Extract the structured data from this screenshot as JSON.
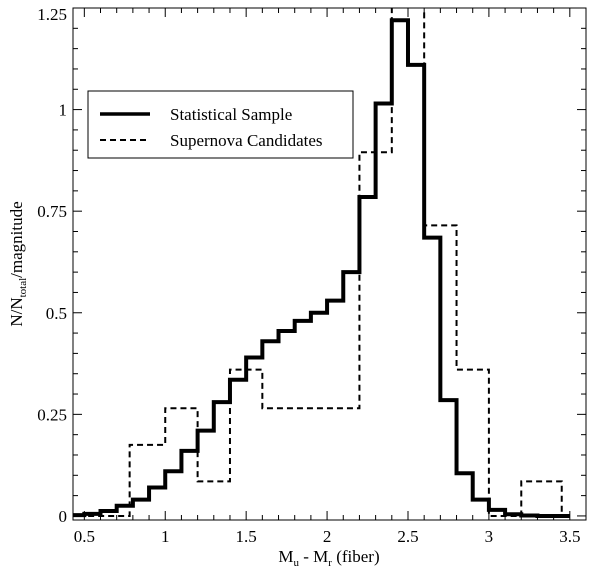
{
  "chart_data": {
    "type": "step-histogram",
    "xlabel": {
      "main": "M",
      "sub1": "u",
      "mid": " - M",
      "sub2": "r",
      "tail": " (fiber)"
    },
    "ylabel": {
      "main": "N/N",
      "sub": "total",
      "tail": "/magnitude"
    },
    "xlim": [
      0.43,
      3.6
    ],
    "ylim": [
      -0.01,
      1.25
    ],
    "xticks": [
      0.5,
      1,
      1.5,
      2,
      2.5,
      3,
      3.5
    ],
    "xtick_labels": [
      "0.5",
      "1",
      "1.5",
      "2",
      "2.5",
      "3",
      "3.5"
    ],
    "yticks": [
      0,
      0.25,
      0.5,
      0.75,
      1,
      1.25
    ],
    "ytick_labels": [
      "0",
      "0.25",
      "0.5",
      "0.75",
      "1",
      "1.25"
    ],
    "legend_position": "upper-left",
    "series": [
      {
        "name": "Statistical Sample",
        "style": "solid",
        "color": "#000000",
        "edges": [
          0.4,
          0.5,
          0.6,
          0.7,
          0.8,
          0.9,
          1.0,
          1.1,
          1.2,
          1.3,
          1.4,
          1.5,
          1.6,
          1.7,
          1.8,
          1.9,
          2.0,
          2.1,
          2.2,
          2.3,
          2.4,
          2.5,
          2.6,
          2.7,
          2.8,
          2.9,
          3.0,
          3.1,
          3.2,
          3.3,
          3.4,
          3.5
        ],
        "values": [
          0.002,
          0.005,
          0.012,
          0.025,
          0.04,
          0.07,
          0.11,
          0.16,
          0.21,
          0.28,
          0.335,
          0.39,
          0.43,
          0.455,
          0.48,
          0.5,
          0.53,
          0.6,
          0.785,
          1.015,
          1.22,
          1.11,
          0.685,
          0.285,
          0.105,
          0.04,
          0.015,
          0.004,
          0.001,
          0.0,
          0.0
        ]
      },
      {
        "name": "Supernova Candidates",
        "style": "dashed",
        "color": "#000000",
        "edges": [
          0.4,
          0.78,
          1.0,
          1.2,
          1.4,
          1.6,
          2.2,
          2.4,
          2.6,
          2.8,
          3.0,
          3.2,
          3.45
        ],
        "values": [
          0.0,
          0.175,
          0.265,
          0.085,
          0.36,
          0.265,
          0.895,
          1.26,
          0.715,
          0.36,
          0.0,
          0.085
        ]
      }
    ]
  }
}
